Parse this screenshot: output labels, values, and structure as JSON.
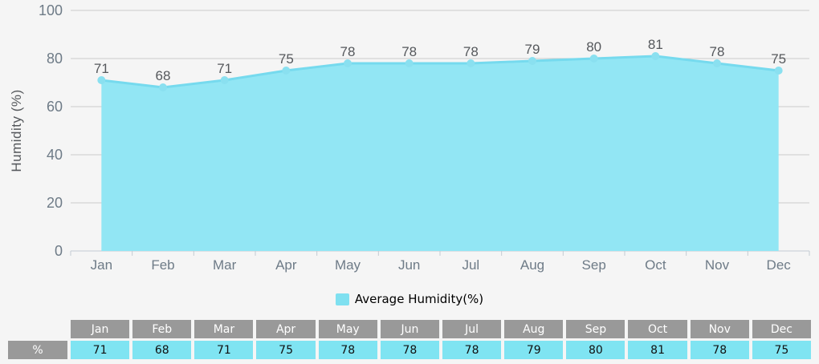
{
  "chart_data": {
    "type": "area",
    "categories": [
      "Jan",
      "Feb",
      "Mar",
      "Apr",
      "May",
      "Jun",
      "Jul",
      "Aug",
      "Sep",
      "Oct",
      "Nov",
      "Dec"
    ],
    "series": [
      {
        "name": "Average Humidity(%)",
        "values": [
          71,
          68,
          71,
          75,
          78,
          78,
          78,
          79,
          80,
          81,
          78,
          75
        ]
      }
    ],
    "title": "",
    "xlabel": "",
    "ylabel": "Humidity (%)",
    "ylim": [
      0,
      100
    ],
    "yticks": [
      0,
      20,
      40,
      60,
      80,
      100
    ],
    "grid": true,
    "legend_position": "bottom",
    "data_labels_shown": true
  },
  "legend": {
    "label": "Average Humidity(%)"
  },
  "table": {
    "row_label": "%",
    "columns": [
      "Jan",
      "Feb",
      "Mar",
      "Apr",
      "May",
      "Jun",
      "Jul",
      "Aug",
      "Sep",
      "Oct",
      "Nov",
      "Dec"
    ],
    "values": [
      71,
      68,
      71,
      75,
      78,
      78,
      78,
      79,
      80,
      81,
      78,
      75
    ]
  },
  "colors": {
    "background": "#f5f5f5",
    "grid_line": "#cccccc",
    "axis_line": "#c3cbd2",
    "tick_label": "#6e7b87",
    "value_label": "#55585c",
    "area_fill": "#92e6f4",
    "line": "#76daee",
    "marker": "#8ae0f0",
    "legend_swatch": "#7fe0f0",
    "table_header_bg": "#999999",
    "table_value_bg": "#7fe4f2"
  }
}
